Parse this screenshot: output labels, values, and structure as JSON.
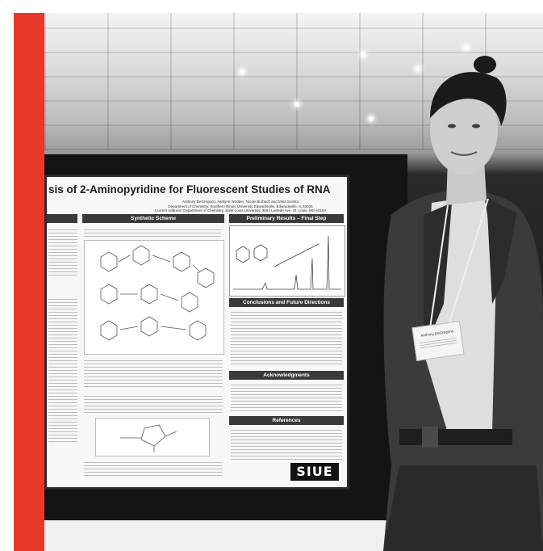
{
  "poster": {
    "title": "sis of 2-Aminopyridine for Fluorescent Studies of RNA",
    "authors": "Anthony DeGregorio, Ashlynn Wooten, Nicole Burbach and Mina Sumita",
    "affiliation": "Department of Chemistry, Southern Illinois University Edwardsville, Edwardsville, IL 62025",
    "address": "Current Address: Department of Chemistry, Saint Louis University, 3501 Laclede Ave. St. Louis, MO 63103",
    "headers": {
      "synthetic": "Synthetic Scheme",
      "preliminary": "Preliminary Results – Final Step",
      "conclusions": "Conclusions and Future Directions",
      "acknowledgments": "Acknowledgments",
      "references": "References"
    },
    "logo": "SIUE"
  },
  "badge": {
    "name": "Anthony DeGregorio"
  }
}
